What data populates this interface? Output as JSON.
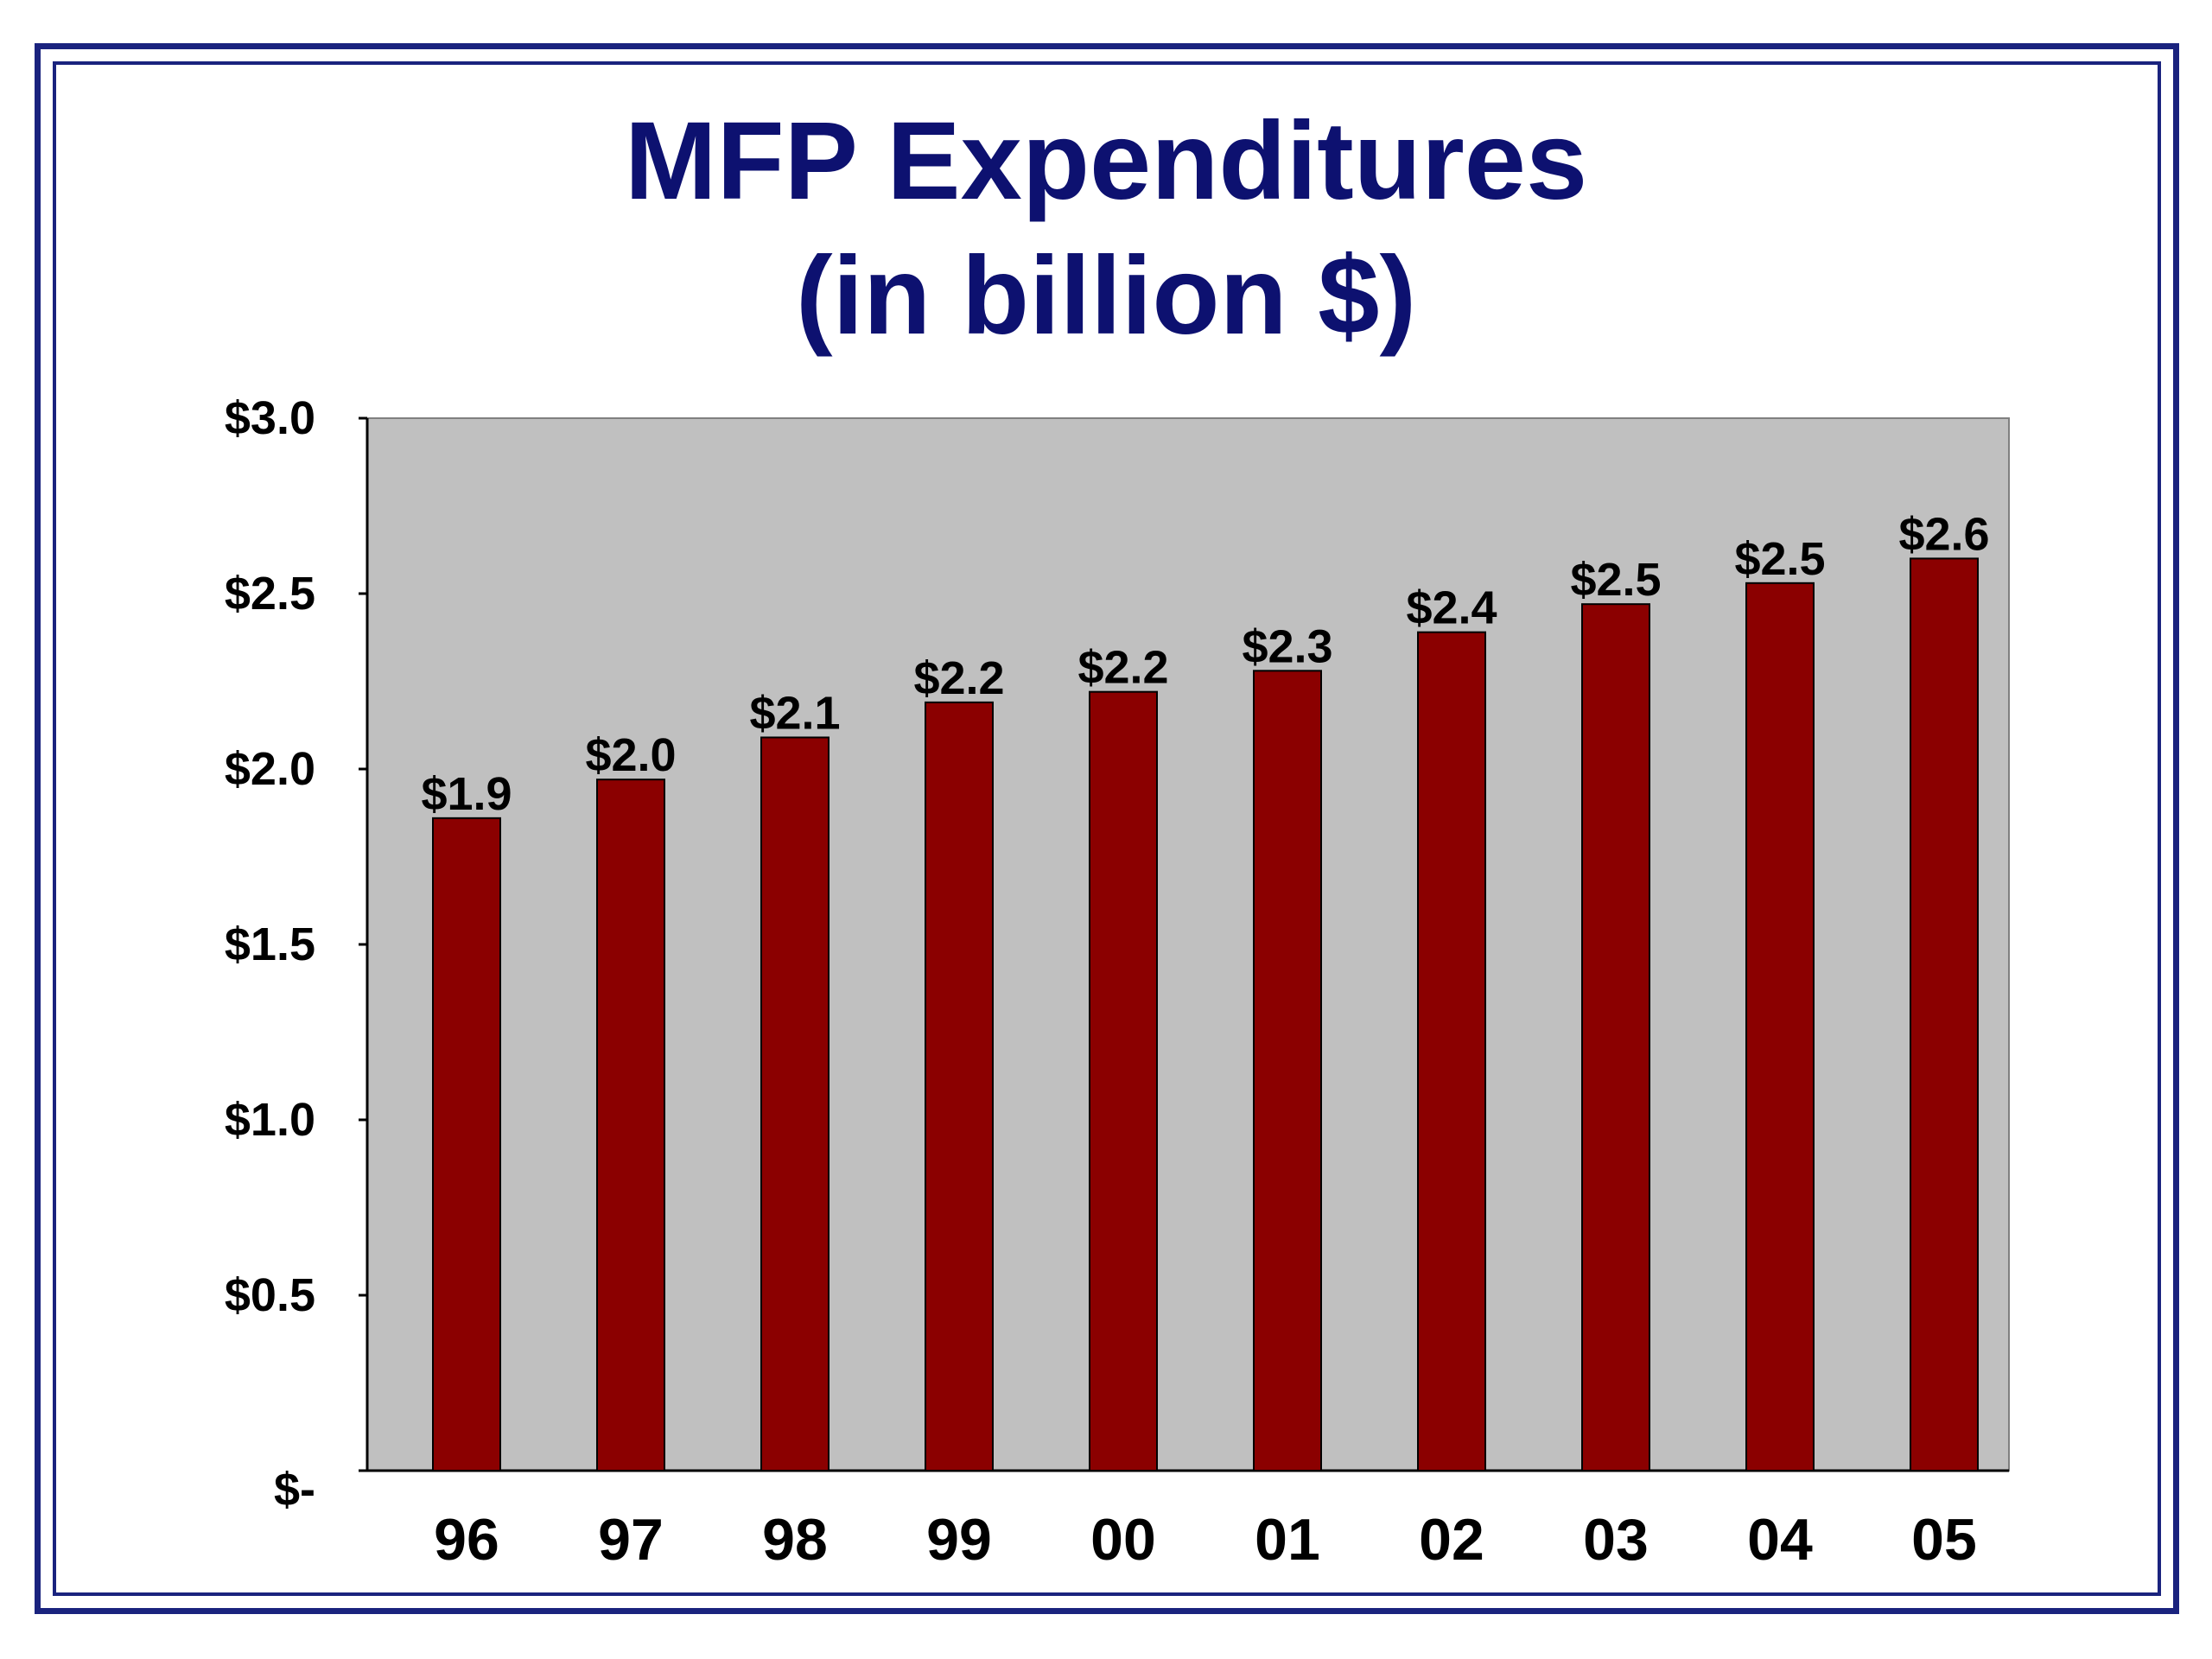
{
  "chart_data": {
    "type": "bar",
    "title": "MFP Expenditures",
    "subtitle": "(in billion $)",
    "categories": [
      "96",
      "97",
      "98",
      "99",
      "00",
      "01",
      "02",
      "03",
      "04",
      "05"
    ],
    "values": [
      1.86,
      1.97,
      2.09,
      2.19,
      2.22,
      2.28,
      2.39,
      2.47,
      2.53,
      2.6
    ],
    "data_labels": [
      "$1.9",
      "$2.0",
      "$2.1",
      "$2.2",
      "$2.2",
      "$2.3",
      "$2.4",
      "$2.5",
      "$2.5",
      "$2.6"
    ],
    "y_ticks": [
      0,
      0.5,
      1.0,
      1.5,
      2.0,
      2.5,
      3.0
    ],
    "y_tick_labels": [
      "$-",
      "$0.5",
      "$1.0",
      "$1.5",
      "$2.0",
      "$2.5",
      "$3.0"
    ],
    "ylim": [
      0,
      3.0
    ],
    "xlabel": "",
    "ylabel": "",
    "grid": false,
    "legend": "none",
    "colors": {
      "bar": "#8b0000",
      "plot_background": "#c0c0c0",
      "title": "#0d1170",
      "frame": "#1a237e"
    }
  }
}
